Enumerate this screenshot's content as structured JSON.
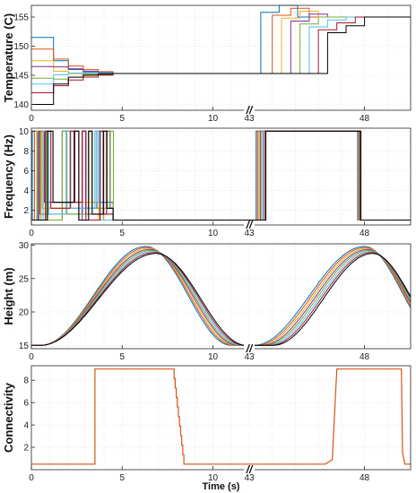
{
  "colors": [
    "#0072BD",
    "#D95319",
    "#EDB120",
    "#7E2F8E",
    "#77AC30",
    "#4DBEEE",
    "#A2142F",
    "#000000"
  ],
  "break_mark": "//",
  "chart_data": [
    {
      "type": "line",
      "ylabel": "Temperature (C)",
      "xlabel": "",
      "ylim": [
        139,
        157
      ],
      "yticks": [
        140,
        145,
        150,
        155
      ],
      "xticks": [
        "0",
        "5",
        "10",
        "43",
        "48"
      ],
      "segments": {
        "left": [
          0,
          12
        ],
        "right": [
          43,
          50
        ]
      },
      "grid": true,
      "series_count": 8,
      "start_values": [
        151.5,
        149.5,
        147.5,
        146.5,
        144.5,
        143.5,
        142.0,
        140.0
      ],
      "converge_time": 4.5,
      "mid_value": 145.3,
      "right_step_times": [
        43.5,
        44.0,
        44.4,
        44.8,
        45.2,
        45.6,
        46.0,
        46.4
      ],
      "right_peak_values": [
        157.0,
        156.5,
        156.0,
        155.5,
        155.0,
        154.5,
        154.0,
        153.5
      ],
      "final_value": 155.0
    },
    {
      "type": "line",
      "ylabel": "Frequency (Hz)",
      "xlabel": "",
      "ylim": [
        0.5,
        10.3
      ],
      "yticks": [
        2,
        4,
        6,
        8,
        10
      ],
      "xticks": [
        "0",
        "5",
        "10",
        "43",
        "48"
      ],
      "segments": {
        "left": [
          0,
          12
        ],
        "right": [
          43,
          50
        ]
      },
      "grid": true,
      "series_count": 8,
      "low_value": 1.0,
      "high_value": 10.0,
      "burst_interval": [
        2.0,
        4.5
      ],
      "right_high_interval": [
        43.3,
        47.7
      ]
    },
    {
      "type": "line",
      "ylabel": "Height (m)",
      "xlabel": "",
      "ylim": [
        14.5,
        30.2
      ],
      "yticks": [
        15,
        20,
        25,
        30
      ],
      "xticks": [
        "0",
        "5",
        "10",
        "43",
        "48"
      ],
      "segments": {
        "left": [
          0,
          12
        ],
        "right": [
          43,
          50
        ]
      },
      "grid": true,
      "series_count": 8,
      "base_value": 15.0,
      "peak_value": 29.8,
      "rise_start": 0.5,
      "peak_time": 6.3,
      "left_descent_end": 11.5,
      "right_rise_start": 43.2,
      "right_peak_time": 48.0
    },
    {
      "type": "line",
      "ylabel": "Connectivity",
      "xlabel": "Time (s)",
      "ylim": [
        0,
        9.3
      ],
      "yticks": [
        2,
        4,
        6,
        8
      ],
      "xticks": [
        "0",
        "5",
        "10",
        "43",
        "48"
      ],
      "segments": {
        "left": [
          0,
          12
        ],
        "right": [
          43,
          50
        ]
      },
      "grid": true,
      "series_count": 1,
      "low_value": 0.5,
      "high_value": 9.0,
      "high_intervals": [
        [
          3.5,
          7.8
        ],
        [
          46.8,
          49.6
        ]
      ],
      "drop_end": 8.4
    }
  ]
}
